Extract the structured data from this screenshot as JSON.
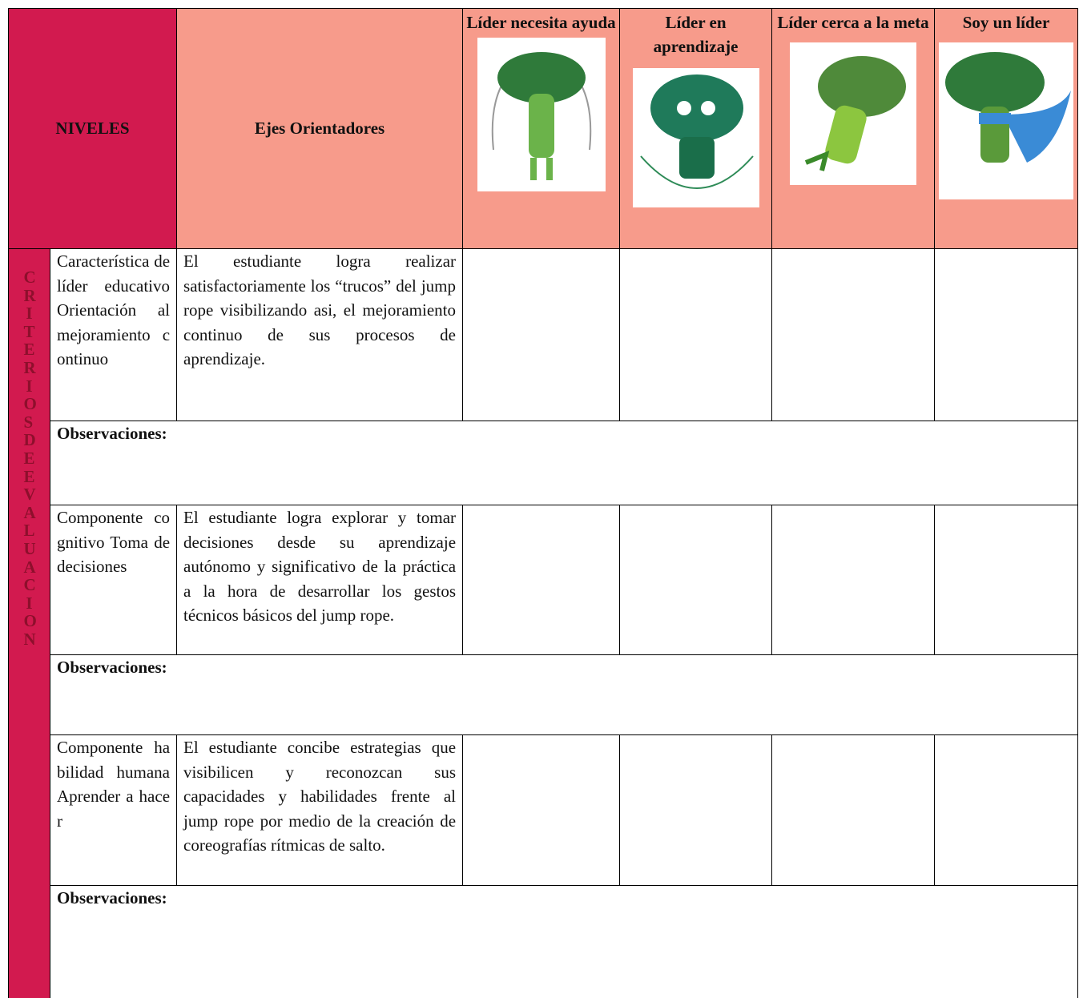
{
  "header": {
    "levels_label": "NIVELES",
    "axes_label": "Ejes Orientadores",
    "levels": [
      "Líder necesita ayuda",
      "Líder en aprendizaje",
      "Líder cerca a la meta",
      "Soy un líder"
    ]
  },
  "side_label": "CRITERIOS DE EVALUACION",
  "rows": [
    {
      "criterion": "Característica de líder educativo Orientación al mejoramiento continuo",
      "description": "El estudiante logra realizar satisfactoriamente los “trucos” del jump rope visibilizando asi, el mejoramiento continuo de sus procesos de aprendizaje.",
      "observations": "Observaciones:"
    },
    {
      "criterion": "Componente cognitivo Toma de decisiones",
      "description": "El estudiante logra explorar y tomar decisiones desde su aprendizaje autónomo y significativo de la práctica a la hora de desarrollar los gestos técnicos básicos del jump rope.",
      "observations": "Observaciones:"
    },
    {
      "criterion": "Componente habilidad humana Aprender a hacer",
      "description": "El estudiante concibe estrategias que visibilicen y reconozcan sus capacidades y habilidades frente al jump rope por medio de la creación de coreografías rítmicas de salto.",
      "observations": "Observaciones:"
    }
  ]
}
